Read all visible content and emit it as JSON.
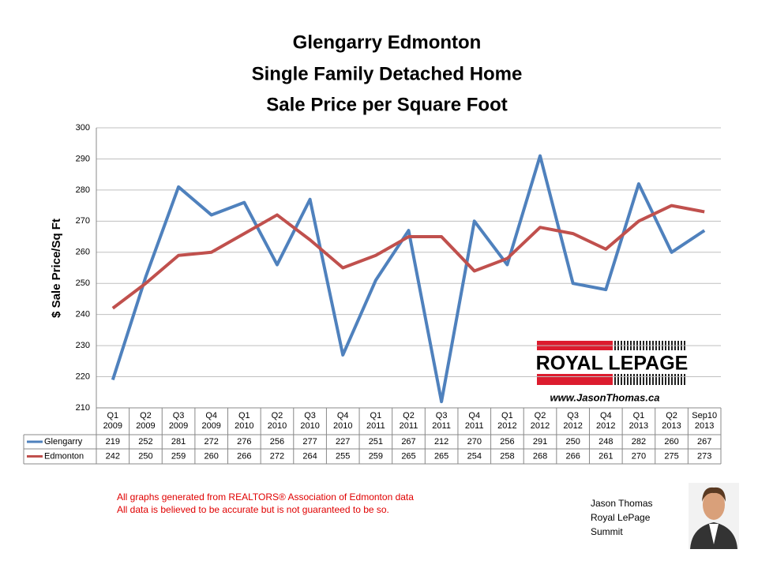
{
  "chart_data": {
    "type": "line",
    "title": [
      "Glengarry Edmonton",
      "Single Family Detached Home",
      "Sale Price per Square Foot"
    ],
    "y_label": "$ Sale Price/Sq Ft",
    "categories": [
      "Q1\n2009",
      "Q2\n2009",
      "Q3\n2009",
      "Q4\n2009",
      "Q1\n2010",
      "Q2\n2010",
      "Q3\n2010",
      "Q4\n2010",
      "Q1\n2011",
      "Q2\n2011",
      "Q3\n2011",
      "Q4\n2011",
      "Q1\n2012",
      "Q2\n2012",
      "Q3\n2012",
      "Q4\n2012",
      "Q1\n2013",
      "Q2\n2013",
      "Sep10\n2013"
    ],
    "series": [
      {
        "name": "Glengarry",
        "color": "#4f81bd",
        "values": [
          219,
          252,
          281,
          272,
          276,
          256,
          277,
          227,
          251,
          267,
          212,
          270,
          256,
          291,
          250,
          248,
          282,
          260,
          267
        ]
      },
      {
        "name": "Edmonton",
        "color": "#c0504d",
        "values": [
          242,
          250,
          259,
          260,
          266,
          272,
          264,
          255,
          259,
          265,
          265,
          254,
          258,
          268,
          266,
          261,
          270,
          275,
          273
        ]
      }
    ],
    "ylim": [
      210,
      300
    ],
    "yticks": [
      210,
      220,
      230,
      240,
      250,
      260,
      270,
      280,
      290,
      300
    ],
    "grid": true
  },
  "logo": {
    "brand": "ROYAL LEPAGE",
    "url": "www.JasonThomas.ca"
  },
  "footnotes": [
    "All graphs generated from REALTORS® Association of Edmonton data",
    "All data is believed to be accurate but is not guaranteed to be so."
  ],
  "agent": [
    "Jason Thomas",
    "Royal LePage",
    "Summit"
  ]
}
